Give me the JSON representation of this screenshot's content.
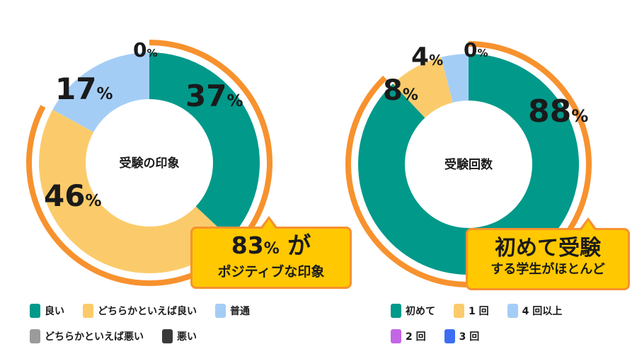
{
  "colors": {
    "teal": "#00998a",
    "yellow": "#fbcb6b",
    "light_blue": "#a4cdf6",
    "gray": "#9b9b9b",
    "dark": "#3a3a3a",
    "purple": "#c266e6",
    "blue": "#3d6df2",
    "orange_arc": "#f7922e",
    "callout_fill": "#ffc800"
  },
  "chart_data": [
    {
      "type": "pie",
      "center_label": "受験の印象",
      "labels": [
        "良い",
        "どちらかといえば良い",
        "普通",
        "どちらかといえば悪い",
        "悪い"
      ],
      "values": [
        37,
        46,
        17,
        0,
        0
      ],
      "value_labels": [
        "37",
        "46",
        "17",
        "0",
        ""
      ],
      "unit": "%",
      "colors": [
        "#00998a",
        "#fbcb6b",
        "#a4cdf6",
        "#9b9b9b",
        "#3a3a3a"
      ],
      "callout": {
        "line1_number": "83",
        "line1_unit": "%",
        "line1_suffix": " が",
        "line2": "ポジティブな印象"
      }
    },
    {
      "type": "pie",
      "center_label": "受験回数",
      "labels": [
        "初めて",
        "1 回",
        "4 回以上",
        "2 回",
        "3 回"
      ],
      "values": [
        88,
        8,
        4,
        0,
        0
      ],
      "value_labels": [
        "88",
        "8",
        "4",
        "0",
        ""
      ],
      "unit": "%",
      "colors": [
        "#00998a",
        "#fbcb6b",
        "#a4cdf6",
        "#c266e6",
        "#3d6df2"
      ],
      "callout": {
        "line1": "初めて受験",
        "line2": "する学生がほとんど"
      }
    }
  ]
}
